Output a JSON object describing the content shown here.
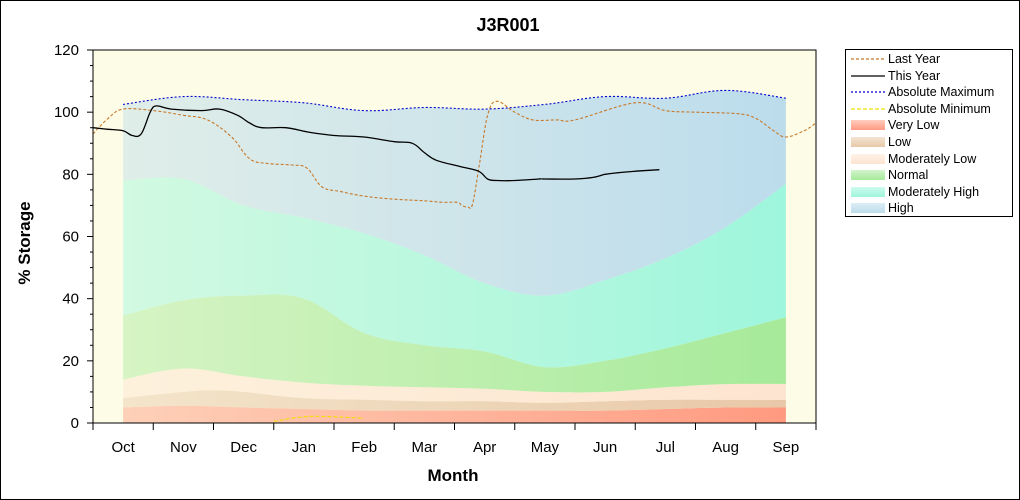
{
  "chart_data": {
    "type": "area",
    "title": "J3R001",
    "xlabel": "Month",
    "ylabel": "% Storage",
    "ylim": [
      0,
      120
    ],
    "yticks": [
      0,
      20,
      40,
      60,
      80,
      100,
      120
    ],
    "xlim": [
      -0.5,
      11.5
    ],
    "month_labels": [
      "Oct",
      "Nov",
      "Dec",
      "Jan",
      "Feb",
      "Mar",
      "Apr",
      "May",
      "Jun",
      "Jul",
      "Aug",
      "Sep"
    ],
    "legend_position": "right",
    "grid": false,
    "bands": [
      {
        "name": "Very Low",
        "color": "#ff9a80",
        "lower": [
          [
            0,
            0
          ],
          [
            11,
            0
          ]
        ],
        "upper": [
          [
            0,
            5
          ],
          [
            1,
            5.5
          ],
          [
            2,
            5
          ],
          [
            3,
            4.5
          ],
          [
            4,
            4
          ],
          [
            5,
            4
          ],
          [
            6,
            4
          ],
          [
            7,
            4
          ],
          [
            8,
            4
          ],
          [
            9,
            4.5
          ],
          [
            10,
            5
          ],
          [
            11,
            5
          ]
        ]
      },
      {
        "name": "Low",
        "color": "#e8c8a8",
        "lower": [
          [
            0,
            5
          ],
          [
            1,
            5.5
          ],
          [
            2,
            5
          ],
          [
            3,
            4.5
          ],
          [
            4,
            4
          ],
          [
            5,
            4
          ],
          [
            6,
            4
          ],
          [
            7,
            4
          ],
          [
            8,
            4
          ],
          [
            9,
            4.5
          ],
          [
            10,
            5
          ],
          [
            11,
            5
          ]
        ],
        "upper": [
          [
            0,
            8
          ],
          [
            1,
            10
          ],
          [
            1.5,
            10.5
          ],
          [
            2,
            10
          ],
          [
            3,
            8
          ],
          [
            4,
            7.5
          ],
          [
            5,
            7
          ],
          [
            6,
            7
          ],
          [
            7,
            6.5
          ],
          [
            8,
            7
          ],
          [
            9,
            7.5
          ],
          [
            10,
            7.5
          ],
          [
            11,
            7.5
          ]
        ]
      },
      {
        "name": "Moderately Low",
        "color": "#fde4d0",
        "lower": [
          [
            0,
            8
          ],
          [
            1,
            10
          ],
          [
            1.5,
            10.5
          ],
          [
            2,
            10
          ],
          [
            3,
            8
          ],
          [
            4,
            7.5
          ],
          [
            5,
            7
          ],
          [
            6,
            7
          ],
          [
            7,
            6.5
          ],
          [
            8,
            7
          ],
          [
            9,
            7.5
          ],
          [
            10,
            7.5
          ],
          [
            11,
            7.5
          ]
        ],
        "upper": [
          [
            0,
            14
          ],
          [
            1,
            17.5
          ],
          [
            2,
            15
          ],
          [
            3,
            13
          ],
          [
            4,
            12
          ],
          [
            5,
            11.5
          ],
          [
            6,
            11
          ],
          [
            7,
            10
          ],
          [
            8,
            10
          ],
          [
            9,
            11.5
          ],
          [
            10,
            12.5
          ],
          [
            11,
            12.5
          ]
        ]
      },
      {
        "name": "Normal",
        "color": "#a6ea9a",
        "lower": [
          [
            0,
            14
          ],
          [
            1,
            17.5
          ],
          [
            2,
            15
          ],
          [
            3,
            13
          ],
          [
            4,
            12
          ],
          [
            5,
            11.5
          ],
          [
            6,
            11
          ],
          [
            7,
            10
          ],
          [
            8,
            10
          ],
          [
            9,
            11.5
          ],
          [
            10,
            12.5
          ],
          [
            11,
            12.5
          ]
        ],
        "upper": [
          [
            0,
            34.5
          ],
          [
            1,
            39.5
          ],
          [
            2,
            41
          ],
          [
            3,
            40
          ],
          [
            4,
            29
          ],
          [
            5,
            25
          ],
          [
            6,
            23
          ],
          [
            7,
            18
          ],
          [
            8,
            20
          ],
          [
            9,
            24
          ],
          [
            10,
            29
          ],
          [
            11,
            34
          ]
        ]
      },
      {
        "name": "Moderately High",
        "color": "#9ef6dc",
        "lower": [
          [
            0,
            34.5
          ],
          [
            1,
            39.5
          ],
          [
            2,
            41
          ],
          [
            3,
            40
          ],
          [
            4,
            29
          ],
          [
            5,
            25
          ],
          [
            6,
            23
          ],
          [
            7,
            18
          ],
          [
            8,
            20
          ],
          [
            9,
            24
          ],
          [
            10,
            29
          ],
          [
            11,
            34
          ]
        ],
        "upper": [
          [
            0,
            78
          ],
          [
            1,
            78.5
          ],
          [
            2,
            70
          ],
          [
            3,
            66
          ],
          [
            4,
            61
          ],
          [
            5,
            54
          ],
          [
            6,
            45
          ],
          [
            7,
            41
          ],
          [
            8,
            46
          ],
          [
            9,
            53
          ],
          [
            10,
            63
          ],
          [
            11,
            77
          ]
        ]
      },
      {
        "name": "High",
        "color": "#bcdcec",
        "lower": [
          [
            0,
            78
          ],
          [
            1,
            78.5
          ],
          [
            2,
            70
          ],
          [
            3,
            66
          ],
          [
            4,
            61
          ],
          [
            5,
            54
          ],
          [
            6,
            45
          ],
          [
            7,
            41
          ],
          [
            8,
            46
          ],
          [
            9,
            53
          ],
          [
            10,
            63
          ],
          [
            11,
            77
          ]
        ],
        "upper": [
          [
            0,
            102.5
          ],
          [
            1,
            105
          ],
          [
            2,
            104
          ],
          [
            3,
            103
          ],
          [
            4,
            100.5
          ],
          [
            5,
            101.5
          ],
          [
            6,
            101
          ],
          [
            7,
            102.5
          ],
          [
            8,
            105
          ],
          [
            9,
            104.5
          ],
          [
            10,
            107
          ],
          [
            11,
            104.5
          ]
        ]
      }
    ],
    "series": [
      {
        "name": "Last Year",
        "color": "#c87828",
        "dash": "3,2",
        "points": [
          [
            -0.5,
            93
          ],
          [
            -0.25,
            98
          ],
          [
            0,
            101
          ],
          [
            0.5,
            100.5
          ],
          [
            1,
            99
          ],
          [
            1.4,
            97.5
          ],
          [
            1.8,
            92
          ],
          [
            2.1,
            85
          ],
          [
            2.4,
            83.5
          ],
          [
            2.8,
            83
          ],
          [
            3.05,
            82
          ],
          [
            3.3,
            76
          ],
          [
            3.6,
            74.5
          ],
          [
            4,
            73
          ],
          [
            4.5,
            72
          ],
          [
            5,
            71.5
          ],
          [
            5.3,
            71
          ],
          [
            5.55,
            71
          ],
          [
            5.62,
            70
          ],
          [
            5.72,
            69.5
          ],
          [
            5.8,
            70.5
          ],
          [
            5.92,
            84
          ],
          [
            6.05,
            99
          ],
          [
            6.2,
            103.5
          ],
          [
            6.5,
            100
          ],
          [
            6.8,
            97.5
          ],
          [
            7.2,
            97.5
          ],
          [
            7.5,
            97.5
          ],
          [
            8.5,
            103
          ],
          [
            9,
            100.5
          ],
          [
            9.5,
            100
          ],
          [
            10.2,
            99.5
          ],
          [
            10.5,
            98
          ],
          [
            10.8,
            94
          ],
          [
            11,
            92
          ],
          [
            11.3,
            94
          ],
          [
            11.5,
            96.5
          ]
        ]
      },
      {
        "name": "This Year",
        "color": "#000000",
        "dash": "",
        "points": [
          [
            -0.5,
            95
          ],
          [
            -0.25,
            94.5
          ],
          [
            0,
            94
          ],
          [
            0.15,
            92.5
          ],
          [
            0.3,
            93
          ],
          [
            0.45,
            100
          ],
          [
            0.55,
            102
          ],
          [
            0.8,
            101
          ],
          [
            1.3,
            100.5
          ],
          [
            1.6,
            101
          ],
          [
            1.9,
            99
          ],
          [
            2.1,
            96.5
          ],
          [
            2.3,
            95
          ],
          [
            2.7,
            95
          ],
          [
            3.1,
            93.5
          ],
          [
            3.5,
            92.5
          ],
          [
            4,
            92
          ],
          [
            4.5,
            90.5
          ],
          [
            4.8,
            90
          ],
          [
            5,
            87
          ],
          [
            5.2,
            84.5
          ],
          [
            5.6,
            82.5
          ],
          [
            5.9,
            81
          ],
          [
            6.05,
            78.5
          ],
          [
            6.2,
            78
          ],
          [
            6.5,
            78
          ],
          [
            6.9,
            78.5
          ],
          [
            7,
            78.5
          ],
          [
            7.5,
            78.5
          ],
          [
            7.8,
            79
          ],
          [
            8,
            80
          ],
          [
            8.2,
            80.5
          ],
          [
            8.5,
            81
          ],
          [
            8.9,
            81.5
          ]
        ]
      },
      {
        "name": "Absolute Maximum",
        "color": "#0000cc",
        "dash": "2,2",
        "points": [
          [
            0,
            102.5
          ],
          [
            1,
            105
          ],
          [
            2,
            104
          ],
          [
            3,
            103
          ],
          [
            4,
            100.5
          ],
          [
            5,
            101.5
          ],
          [
            6,
            101
          ],
          [
            7,
            102.5
          ],
          [
            8,
            105
          ],
          [
            9,
            104.5
          ],
          [
            10,
            107
          ],
          [
            11,
            104.5
          ]
        ]
      },
      {
        "name": "Absolute Minimum",
        "color": "#f0e000",
        "dash": "4,2",
        "points": [
          [
            2.5,
            0.5
          ],
          [
            3,
            2
          ],
          [
            3.5,
            2
          ],
          [
            4,
            1.5
          ]
        ]
      }
    ],
    "legend": [
      {
        "name": "Last Year",
        "kind": "line",
        "color": "#c87828",
        "dash": "3,2"
      },
      {
        "name": "This Year",
        "kind": "line",
        "color": "#000000",
        "dash": ""
      },
      {
        "name": "Absolute Maximum",
        "kind": "line",
        "color": "#0000cc",
        "dash": "2,2"
      },
      {
        "name": "Absolute Minimum",
        "kind": "line",
        "color": "#f0e000",
        "dash": "4,2"
      },
      {
        "name": "Very Low",
        "kind": "band",
        "color": "#ff9a80"
      },
      {
        "name": "Low",
        "kind": "band",
        "color": "#e8c8a8"
      },
      {
        "name": "Moderately Low",
        "kind": "band",
        "color": "#fde4d0"
      },
      {
        "name": "Normal",
        "kind": "band",
        "color": "#a6ea9a"
      },
      {
        "name": "Moderately High",
        "kind": "band",
        "color": "#9ef6dc"
      },
      {
        "name": "High",
        "kind": "band",
        "color": "#bcdcec"
      }
    ],
    "colors": {
      "plot_background": "#fdfce6"
    }
  }
}
